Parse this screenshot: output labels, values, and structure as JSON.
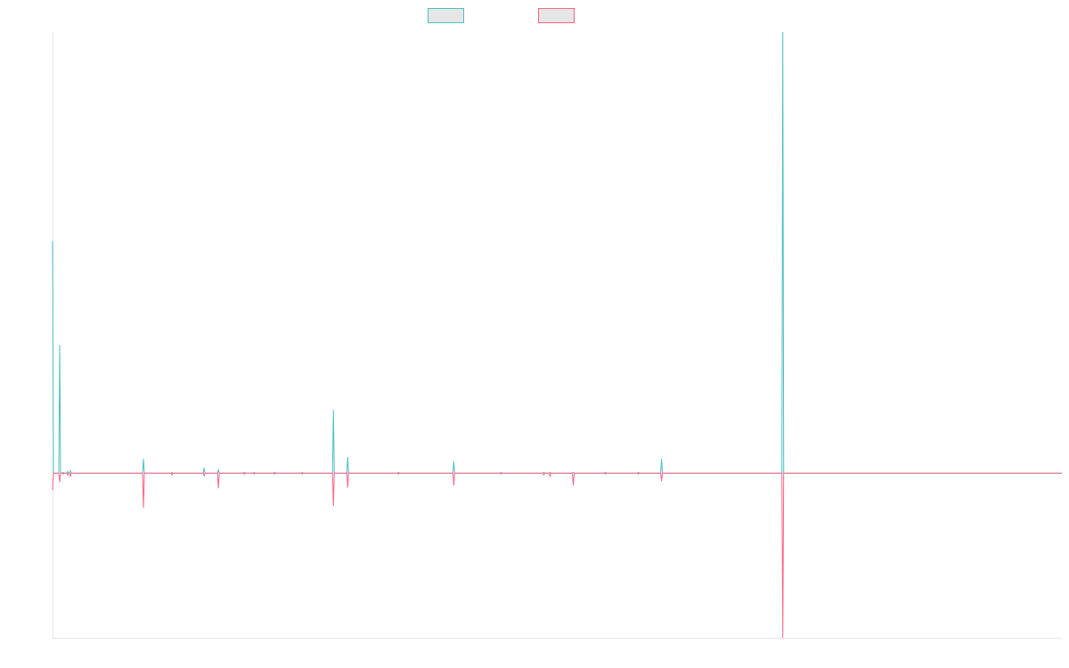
{
  "chart_data": {
    "type": "line",
    "title": "",
    "xlabel": "",
    "ylabel": "",
    "grid": false,
    "legend_position": "top-center",
    "x": [
      0,
      1,
      2,
      3,
      4,
      5,
      6,
      7,
      8,
      9,
      10,
      11,
      12,
      13,
      14,
      15,
      16,
      17,
      18,
      19,
      20,
      21,
      22,
      23,
      24,
      25,
      26,
      27,
      28,
      29,
      30,
      31,
      32,
      33,
      34,
      35,
      36,
      37,
      38,
      39,
      40,
      41,
      42,
      43,
      44,
      45,
      46,
      47,
      48,
      49,
      50,
      51,
      52,
      53,
      54,
      55,
      56,
      57,
      58,
      59,
      60,
      61,
      62,
      63,
      64,
      65,
      66,
      67,
      68,
      69,
      70,
      71,
      72,
      73,
      74,
      75,
      76,
      77,
      78,
      79,
      80,
      81,
      82,
      83,
      84,
      85,
      86,
      87,
      88,
      89,
      90,
      91,
      92,
      93,
      94,
      95,
      96,
      97,
      98,
      99,
      100,
      101,
      102,
      103,
      104,
      105,
      106,
      107,
      108,
      109,
      110,
      111,
      112,
      113,
      114,
      115,
      116,
      117,
      118,
      119,
      120,
      121,
      122,
      123,
      124,
      125,
      126,
      127,
      128,
      129,
      130,
      131,
      132,
      133,
      134,
      135,
      136,
      137,
      138,
      139,
      140,
      141,
      142,
      143,
      144,
      145,
      146,
      147,
      148,
      149,
      150,
      151,
      152,
      153,
      154,
      155,
      156,
      157,
      158,
      159,
      160,
      161,
      162,
      163,
      164,
      165,
      166,
      167,
      168,
      169,
      170,
      171,
      172,
      173,
      174,
      175,
      176,
      177,
      178,
      179,
      180,
      181,
      182,
      183,
      184,
      185,
      186,
      187,
      188,
      189,
      190,
      191,
      192,
      193,
      194,
      195,
      196,
      197,
      198,
      199,
      200,
      201,
      202,
      203,
      204,
      205,
      206,
      207,
      208,
      209,
      210,
      211,
      212,
      213,
      214,
      215,
      216,
      217,
      218,
      219,
      220,
      221,
      222,
      223,
      224,
      225,
      226,
      227,
      228,
      229,
      230,
      231,
      232,
      233,
      234,
      235,
      236,
      237,
      238,
      239,
      240,
      241,
      242,
      243,
      244,
      245,
      246,
      247,
      248,
      249,
      250,
      251,
      252,
      253,
      254,
      255,
      256,
      257,
      258,
      259,
      260,
      261,
      262,
      263,
      264,
      265,
      266,
      267,
      268,
      269,
      270,
      271,
      272,
      273,
      274,
      275,
      276,
      277,
      278,
      279,
      280,
      281,
      282,
      283,
      284,
      285,
      286,
      287,
      288,
      289,
      290,
      291,
      292,
      293,
      294,
      295,
      296,
      297,
      298,
      299,
      300,
      301,
      302,
      303,
      304,
      305,
      306,
      307,
      308,
      309,
      310,
      311,
      312,
      313,
      314,
      315,
      316,
      317,
      318,
      319,
      320,
      321,
      322,
      323,
      324,
      325,
      326,
      327,
      328,
      329,
      330,
      331,
      332,
      333,
      334,
      335,
      336,
      337,
      338,
      339,
      340,
      341,
      342,
      343,
      344,
      345,
      346,
      347,
      348,
      349,
      350,
      351,
      352,
      353,
      354,
      355,
      356,
      357,
      358,
      359,
      360,
      361,
      362,
      363,
      364,
      365,
      366,
      367,
      368,
      369,
      370,
      371,
      372,
      373,
      374,
      375,
      376,
      377,
      378,
      379,
      380,
      381,
      382,
      383,
      384,
      385,
      386,
      387,
      388,
      389,
      390,
      391,
      392,
      393,
      394,
      395,
      396,
      397,
      398,
      399,
      400,
      401,
      402,
      403,
      404,
      405,
      406,
      407,
      408,
      409,
      410,
      411,
      412,
      413,
      414,
      415,
      416,
      417,
      418,
      419,
      420,
      421,
      422,
      423,
      424,
      425,
      426,
      427,
      428,
      429,
      430,
      431,
      432,
      433,
      434,
      435,
      436,
      437,
      438,
      439,
      440,
      441,
      442,
      443,
      444,
      445,
      446,
      447,
      448,
      449,
      450,
      451,
      452,
      453,
      454,
      455,
      456,
      457,
      458,
      459,
      460,
      461,
      462,
      463,
      464,
      465,
      466,
      467,
      468,
      469,
      470,
      471,
      472,
      473,
      474,
      475,
      476,
      477,
      478,
      479,
      480,
      481,
      482,
      483,
      484,
      485,
      486,
      487,
      488,
      489,
      490,
      491,
      492,
      493,
      494,
      495,
      496,
      497,
      498,
      499,
      500,
      501,
      502,
      503,
      504,
      505,
      506,
      507,
      508,
      509,
      510,
      511,
      512,
      513,
      514,
      515,
      516,
      517,
      518,
      519,
      520,
      521,
      522,
      523,
      524,
      525,
      526,
      527,
      528,
      529,
      530,
      531,
      532,
      533,
      534,
      535,
      536,
      537,
      538,
      539,
      540,
      541,
      542,
      543,
      544,
      545,
      546,
      547,
      548,
      549,
      550,
      551,
      552,
      553,
      554,
      555,
      556,
      557,
      558,
      559,
      560,
      561,
      562,
      563,
      564,
      565,
      566,
      567,
      568,
      569,
      570,
      571,
      572,
      573,
      574,
      575,
      576,
      577,
      578,
      579,
      580,
      581,
      582,
      583,
      584,
      585,
      586,
      587,
      588,
      589,
      590,
      591,
      592,
      593,
      594,
      595,
      596,
      597,
      598,
      599,
      600,
      601,
      602,
      603,
      604,
      605,
      606,
      607,
      608,
      609,
      610,
      611,
      612,
      613,
      614,
      615,
      616,
      617,
      618,
      619,
      620,
      621,
      622,
      623,
      624,
      625,
      626,
      627,
      628,
      629,
      630,
      631,
      632,
      633,
      634,
      635,
      636,
      637,
      638,
      639,
      640,
      641,
      642,
      643,
      644,
      645,
      646,
      647,
      648,
      649,
      650,
      651,
      652,
      653,
      654,
      655,
      656,
      657,
      658,
      659,
      660,
      661,
      662,
      663,
      664,
      665,
      666,
      667,
      668,
      669,
      670,
      671,
      672,
      673,
      674,
      675,
      676,
      677,
      678,
      679,
      680,
      681,
      682,
      683,
      684,
      685,
      686,
      687,
      688,
      689,
      690,
      691,
      692,
      693,
      694,
      695,
      696,
      697,
      698,
      699,
      700,
      701,
      702,
      703,
      704,
      705,
      706,
      707,
      708,
      709,
      710,
      711,
      712,
      713,
      714,
      715,
      716,
      717,
      718,
      719,
      720,
      721,
      722,
      723,
      724,
      725,
      726,
      727,
      728,
      729,
      730,
      731,
      732,
      733,
      734,
      735,
      736,
      737,
      738,
      739,
      740,
      741,
      742,
      743,
      744,
      745,
      746,
      747,
      748,
      749,
      750,
      751,
      752,
      753,
      754,
      755,
      756,
      757,
      758,
      759,
      760,
      761,
      762,
      763,
      764,
      765,
      766,
      767,
      768,
      769,
      770,
      771,
      772,
      773,
      774,
      775,
      776,
      777,
      778,
      779,
      780,
      781,
      782,
      783,
      784,
      785,
      786,
      787,
      788,
      789,
      790,
      791,
      792,
      793,
      794,
      795,
      796,
      797,
      798,
      799,
      800,
      801,
      802,
      803,
      804,
      805,
      806,
      807,
      808,
      809,
      810,
      811,
      812,
      813,
      814,
      815,
      816,
      817,
      818,
      819,
      820,
      821,
      822,
      823,
      824,
      825,
      826,
      827,
      828,
      829,
      830,
      831,
      832,
      833,
      834,
      835,
      836,
      837,
      838,
      839,
      840,
      841,
      842,
      843,
      844,
      845,
      846,
      847,
      848,
      849,
      850,
      851,
      852,
      853,
      854,
      855,
      856,
      857,
      858,
      859,
      860,
      861,
      862,
      863,
      864,
      865,
      866,
      867,
      868,
      869,
      870,
      871,
      872,
      873,
      874,
      875,
      876,
      877,
      878,
      879,
      880,
      881,
      882,
      883,
      884,
      885,
      886,
      887,
      888,
      889,
      890,
      891,
      892,
      893,
      894,
      895,
      896,
      897,
      898,
      899,
      900,
      901,
      902,
      903,
      904,
      905,
      906,
      907,
      908,
      909,
      910,
      911,
      912,
      913,
      914,
      915,
      916,
      917,
      918,
      919,
      920,
      921,
      922,
      923,
      924,
      925,
      926,
      927,
      928,
      929,
      930,
      931,
      932,
      933,
      934,
      935,
      936,
      937,
      938,
      939,
      940,
      941,
      942,
      943,
      944,
      945,
      946,
      947,
      948,
      949,
      950,
      951,
      952,
      953,
      954,
      955,
      956,
      957,
      958,
      959,
      960,
      961,
      962,
      963,
      964,
      965,
      966,
      967,
      968,
      969,
      970,
      971,
      972,
      973,
      974,
      975,
      976,
      977,
      978,
      979,
      980,
      981,
      982,
      983,
      984,
      985,
      986,
      987,
      988,
      989,
      990,
      991,
      992,
      993,
      994,
      995,
      996,
      997,
      998,
      999,
      1000,
      1001,
      1002,
      1003,
      1004,
      1005,
      1006,
      1007,
      1008,
      1009,
      1010,
      1011,
      1012,
      1013,
      1014,
      1015,
      1016,
      1017,
      1018,
      1019,
      1020,
      1021,
      1022,
      1023,
      1024,
      1025,
      1026,
      1027,
      1028,
      1029,
      1030,
      1031,
      1032,
      1033,
      1034,
      1035,
      1036,
      1037,
      1038,
      1039,
      1040,
      1041,
      1042,
      1043,
      1044,
      1045,
      1046,
      1047,
      1048,
      1049,
      1050,
      1051,
      1052,
      1053,
      1054,
      1055,
      1056,
      1057,
      1058,
      1059,
      1060,
      1061,
      1062,
      1063,
      1064,
      1065,
      1066,
      1067,
      1068,
      1069,
      1070,
      1071,
      1072,
      1073,
      1074,
      1075,
      1076,
      1077,
      1078,
      1079,
      1080,
      1081,
      1082,
      1083,
      1084,
      1085,
      1086,
      1087,
      1088,
      1089,
      1090,
      1091,
      1092,
      1093,
      1094,
      1095,
      1096,
      1097,
      1098,
      1099,
      1100,
      1101,
      1102,
      1103,
      1104,
      1105,
      1106,
      1107,
      1108,
      1109,
      1110,
      1111,
      1112,
      1113,
      1114,
      1115,
      1116,
      1117,
      1118,
      1119,
      1120,
      1121,
      1122,
      1123,
      1124,
      1125,
      1126,
      1127,
      1128,
      1129,
      1130,
      1131,
      1132
    ],
    "series": [
      {
        "color": "#4bc0c0",
        "fill": "#e6e6e6",
        "peaks": [
          [
            0,
            261
          ],
          [
            8,
            144
          ],
          [
            12,
            1
          ],
          [
            17,
            2
          ],
          [
            20,
            3
          ],
          [
            102,
            16
          ],
          [
            134,
            1
          ],
          [
            170,
            6
          ],
          [
            186,
            4
          ],
          [
            215,
            1
          ],
          [
            226,
            1
          ],
          [
            249,
            1
          ],
          [
            280,
            1
          ],
          [
            315,
            71
          ],
          [
            331,
            18
          ],
          [
            388,
            1
          ],
          [
            450,
            13
          ],
          [
            503,
            1
          ],
          [
            551,
            1
          ],
          [
            558,
            1
          ],
          [
            584,
            1
          ],
          [
            620,
            1
          ],
          [
            657,
            1
          ],
          [
            683,
            16
          ],
          [
            819,
            496
          ]
        ]
      },
      {
        "color": "#ff6384",
        "fill": "#e6e6e6",
        "peaks": [
          [
            0,
            -19
          ],
          [
            8,
            -10
          ],
          [
            12,
            -1
          ],
          [
            17,
            -2
          ],
          [
            20,
            -4
          ],
          [
            102,
            -39
          ],
          [
            134,
            -2
          ],
          [
            170,
            -3
          ],
          [
            186,
            -17
          ],
          [
            215,
            -1
          ],
          [
            226,
            -1
          ],
          [
            249,
            -1
          ],
          [
            280,
            -1
          ],
          [
            315,
            -37
          ],
          [
            331,
            -16
          ],
          [
            388,
            -1
          ],
          [
            450,
            -14
          ],
          [
            503,
            -1
          ],
          [
            551,
            -2
          ],
          [
            558,
            -4
          ],
          [
            584,
            -14
          ],
          [
            620,
            -1
          ],
          [
            657,
            -1
          ],
          [
            683,
            -9
          ],
          [
            819,
            -185
          ]
        ]
      }
    ],
    "ylim": [
      -185,
      496
    ]
  }
}
